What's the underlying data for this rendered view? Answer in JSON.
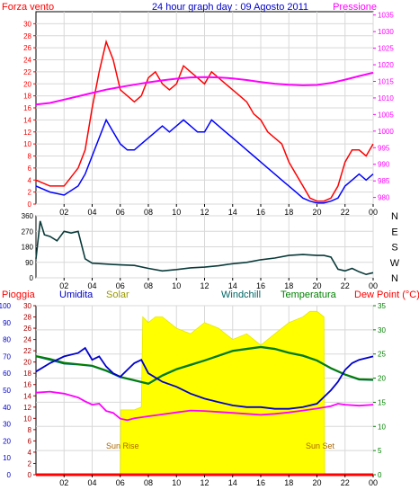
{
  "header": {
    "left_title": "Forza vento",
    "center_title": "24 hour graph day : 09 Agosto 2011",
    "right_title": "Pressione"
  },
  "colors": {
    "wind": "#ff0000",
    "gust_avg": "#0000ff",
    "pressure": "#ff00ff",
    "direction": "#0a3a3a",
    "rain": "#ff0000",
    "humidity": "#0000cc",
    "solar": "#ffff00",
    "windchill": "#006666",
    "temperature": "#008000",
    "dewpoint": "#ff00ff",
    "axis_wind": "#ff0000",
    "axis_pressure": "#ff00ff",
    "axis_temp": "#008000",
    "grid": "#d8d8d8"
  },
  "chart_data": [
    {
      "type": "line",
      "name": "wind-pressure",
      "title": "24 hour graph day : 09 Agosto 2011",
      "x_ticks": [
        "02",
        "04",
        "06",
        "08",
        "10",
        "12",
        "14",
        "16",
        "18",
        "20",
        "22",
        "00"
      ],
      "xlim": [
        0,
        24
      ],
      "ylim_left": [
        0,
        32
      ],
      "y_left_ticks": [
        0,
        2,
        4,
        6,
        8,
        10,
        12,
        14,
        16,
        18,
        20,
        22,
        24,
        26,
        28,
        30
      ],
      "ylim_right": [
        978,
        1036
      ],
      "y_right_ticks": [
        980,
        985,
        990,
        995,
        1000,
        1005,
        1010,
        1015,
        1020,
        1025,
        1030,
        1035
      ],
      "series": [
        {
          "name": "Forza vento",
          "axis": "left",
          "x": [
            0,
            1,
            2,
            3,
            3.5,
            4,
            4.5,
            5,
            5.5,
            6,
            6.5,
            7,
            7.5,
            8,
            8.5,
            9,
            9.5,
            10,
            10.5,
            11,
            11.5,
            12,
            12.5,
            13,
            13.5,
            14,
            14.5,
            15,
            15.5,
            16,
            16.5,
            17,
            17.5,
            18,
            18.5,
            19,
            19.5,
            20,
            20.5,
            21,
            21.5,
            22,
            22.5,
            23,
            23.5,
            24
          ],
          "y": [
            4,
            3,
            3,
            6,
            9,
            16,
            22,
            27,
            24,
            19,
            18,
            17,
            18,
            21,
            22,
            20,
            19,
            20,
            23,
            22,
            21,
            20,
            22,
            21,
            20,
            19,
            18,
            17,
            15,
            14,
            12,
            11,
            10,
            7,
            5,
            3,
            1,
            0.5,
            0.5,
            1,
            3,
            7,
            9,
            9,
            8,
            10
          ]
        },
        {
          "name": "Raffica media",
          "axis": "left",
          "x": [
            0,
            1,
            2,
            3,
            3.5,
            4,
            4.5,
            5,
            5.5,
            6,
            6.5,
            7,
            7.5,
            8,
            8.5,
            9,
            9.5,
            10,
            10.5,
            11,
            11.5,
            12,
            12.5,
            13,
            13.5,
            14,
            14.5,
            15,
            15.5,
            16,
            16.5,
            17,
            17.5,
            18,
            18.5,
            19,
            19.5,
            20,
            20.5,
            21,
            21.5,
            22,
            22.5,
            23,
            23.5,
            24
          ],
          "y": [
            3,
            2,
            1.5,
            3,
            5,
            8,
            11,
            14,
            12,
            10,
            9,
            9,
            10,
            11,
            12,
            13,
            12,
            13,
            14,
            13,
            12,
            12,
            14,
            13,
            12,
            11,
            10,
            9,
            8,
            7,
            6,
            5,
            4,
            3,
            2,
            1,
            0.5,
            0.2,
            0.2,
            0.5,
            1,
            3,
            4,
            5,
            4,
            5
          ]
        },
        {
          "name": "Pressione",
          "axis": "right",
          "x": [
            0,
            1,
            2,
            3,
            4,
            5,
            6,
            7,
            8,
            9,
            10,
            11,
            12,
            13,
            14,
            15,
            16,
            17,
            18,
            19,
            20,
            21,
            22,
            23,
            24
          ],
          "y": [
            1008,
            1008.5,
            1009.5,
            1010.5,
            1011.5,
            1012.5,
            1013.3,
            1014,
            1014.7,
            1015.3,
            1015.8,
            1016.2,
            1016.3,
            1016.2,
            1015.9,
            1015.4,
            1014.8,
            1014.3,
            1014,
            1013.8,
            1013.9,
            1014.5,
            1015.5,
            1016.6,
            1017.6
          ]
        }
      ]
    },
    {
      "type": "line",
      "name": "wind-direction",
      "x_ticks": [
        "02",
        "04",
        "06",
        "08",
        "10",
        "12",
        "14",
        "16",
        "18",
        "20",
        "22",
        "00"
      ],
      "xlim": [
        0,
        24
      ],
      "ylim": [
        0,
        360
      ],
      "y_ticks": [
        0,
        90,
        180,
        270,
        360
      ],
      "right_ticks": [
        "N",
        "W",
        "S",
        "E",
        "N"
      ],
      "series": [
        {
          "name": "Direzione",
          "x": [
            0,
            0.3,
            0.6,
            1,
            1.5,
            2,
            2.5,
            3,
            3.5,
            4,
            5,
            6,
            7,
            8,
            9,
            10,
            11,
            12,
            13,
            14,
            15,
            16,
            17,
            18,
            19,
            20,
            20.5,
            21,
            21.5,
            22,
            22.5,
            23,
            23.5,
            24
          ],
          "y": [
            110,
            330,
            250,
            240,
            215,
            270,
            260,
            270,
            110,
            85,
            80,
            75,
            72,
            55,
            40,
            48,
            58,
            62,
            70,
            82,
            90,
            105,
            115,
            130,
            135,
            130,
            130,
            120,
            50,
            40,
            55,
            35,
            20,
            30
          ]
        }
      ]
    },
    {
      "type": "line",
      "name": "temperature-humidity",
      "x_ticks": [
        "02",
        "04",
        "06",
        "08",
        "10",
        "12",
        "14",
        "16",
        "18",
        "20",
        "22",
        "00"
      ],
      "xlim": [
        0,
        24
      ],
      "legend": [
        "Pioggia",
        "Umidita",
        "Solar",
        "Windchill",
        "Temperatura",
        "Dew Point (°C)"
      ],
      "y_humidity_ticks": [
        0,
        10,
        20,
        30,
        40,
        50,
        60,
        70,
        80,
        90,
        100
      ],
      "y_solar_ticks": [
        0,
        2,
        4,
        6,
        8,
        10,
        12,
        14,
        16,
        18,
        20,
        22,
        24,
        26,
        28,
        30
      ],
      "y_temp_ticks": [
        0,
        5,
        10,
        15,
        20,
        25,
        30,
        35
      ],
      "ylim_temp": [
        0,
        35
      ],
      "annotations": [
        {
          "text": "Sun Rise",
          "x": 6
        },
        {
          "text": "Sun Set",
          "x": 20.5
        }
      ],
      "series": [
        {
          "name": "Pioggia",
          "axis": "humidity",
          "x": [
            0,
            24
          ],
          "y": [
            0,
            0
          ]
        },
        {
          "name": "Umidita",
          "axis": "humidity",
          "x": [
            0,
            1,
            2,
            3,
            3.5,
            4,
            4.5,
            5,
            5.5,
            6,
            6.5,
            7,
            7.5,
            8,
            9,
            10,
            11,
            12,
            13,
            14,
            15,
            16,
            17,
            18,
            19,
            20,
            21,
            21.5,
            22,
            22.5,
            23,
            24
          ],
          "y": [
            61,
            66,
            70,
            72,
            75,
            68,
            70,
            64,
            60,
            58,
            62,
            66,
            68,
            60,
            55,
            52,
            48,
            45,
            43,
            41,
            40,
            40,
            39,
            39,
            40,
            42,
            50,
            55,
            62,
            66,
            68,
            70
          ]
        },
        {
          "name": "Solar",
          "axis": "solar",
          "x": [
            0,
            6,
            6.05,
            7,
            7.5,
            7.6,
            8,
            8.5,
            9,
            10,
            11,
            12,
            13,
            14,
            15,
            16,
            17,
            18,
            19,
            19.5,
            20,
            20.5,
            20.55,
            24
          ],
          "y": [
            0,
            0,
            11.5,
            11.5,
            12,
            28,
            27,
            28,
            28,
            26,
            25,
            27,
            26,
            24,
            25,
            23,
            25,
            27,
            28,
            29,
            29,
            28,
            0,
            0
          ]
        },
        {
          "name": "Windchill",
          "axis": "temp",
          "x": [
            0,
            1,
            2,
            3,
            4,
            5,
            6,
            7,
            8,
            9,
            10,
            11,
            12,
            13,
            14,
            15,
            16,
            17,
            18,
            19,
            20,
            21,
            22,
            23,
            24
          ],
          "y": [
            24.5,
            23.8,
            23,
            22.8,
            22.5,
            21.5,
            20.2,
            19.5,
            18.8,
            20.5,
            21.8,
            22.7,
            23.6,
            24.6,
            25.6,
            26,
            26.4,
            26,
            25.2,
            24.6,
            23.6,
            22,
            20.7,
            19.7,
            19.6
          ]
        },
        {
          "name": "Temperatura",
          "axis": "temp",
          "x": [
            0,
            1,
            2,
            3,
            4,
            5,
            6,
            7,
            8,
            9,
            10,
            11,
            12,
            13,
            14,
            15,
            16,
            17,
            18,
            19,
            20,
            21,
            22,
            23,
            24
          ],
          "y": [
            24.6,
            24,
            23.2,
            22.9,
            22.6,
            21.6,
            20.3,
            19.6,
            18.9,
            20.6,
            21.9,
            22.8,
            23.7,
            24.7,
            25.7,
            26.1,
            26.5,
            26.1,
            25.3,
            24.7,
            23.7,
            22.1,
            20.8,
            19.8,
            19.7
          ]
        },
        {
          "name": "Dew Point (°C)",
          "axis": "temp",
          "x": [
            0,
            1,
            2,
            3,
            3.5,
            4,
            4.5,
            5,
            5.5,
            6,
            6.5,
            7,
            8,
            9,
            10,
            11,
            12,
            13,
            14,
            15,
            16,
            17,
            18,
            19,
            20,
            21,
            21.5,
            22,
            23,
            24
          ],
          "y": [
            17,
            17.2,
            16.8,
            16,
            15.2,
            14.5,
            14.7,
            13.2,
            12.8,
            11.6,
            11.3,
            11.7,
            12.1,
            12.5,
            12.9,
            13.3,
            13.2,
            13,
            12.8,
            12.6,
            12.4,
            12.6,
            12.9,
            13.3,
            13.7,
            14.2,
            14.7,
            14.5,
            14.3,
            14.5
          ]
        }
      ]
    }
  ]
}
